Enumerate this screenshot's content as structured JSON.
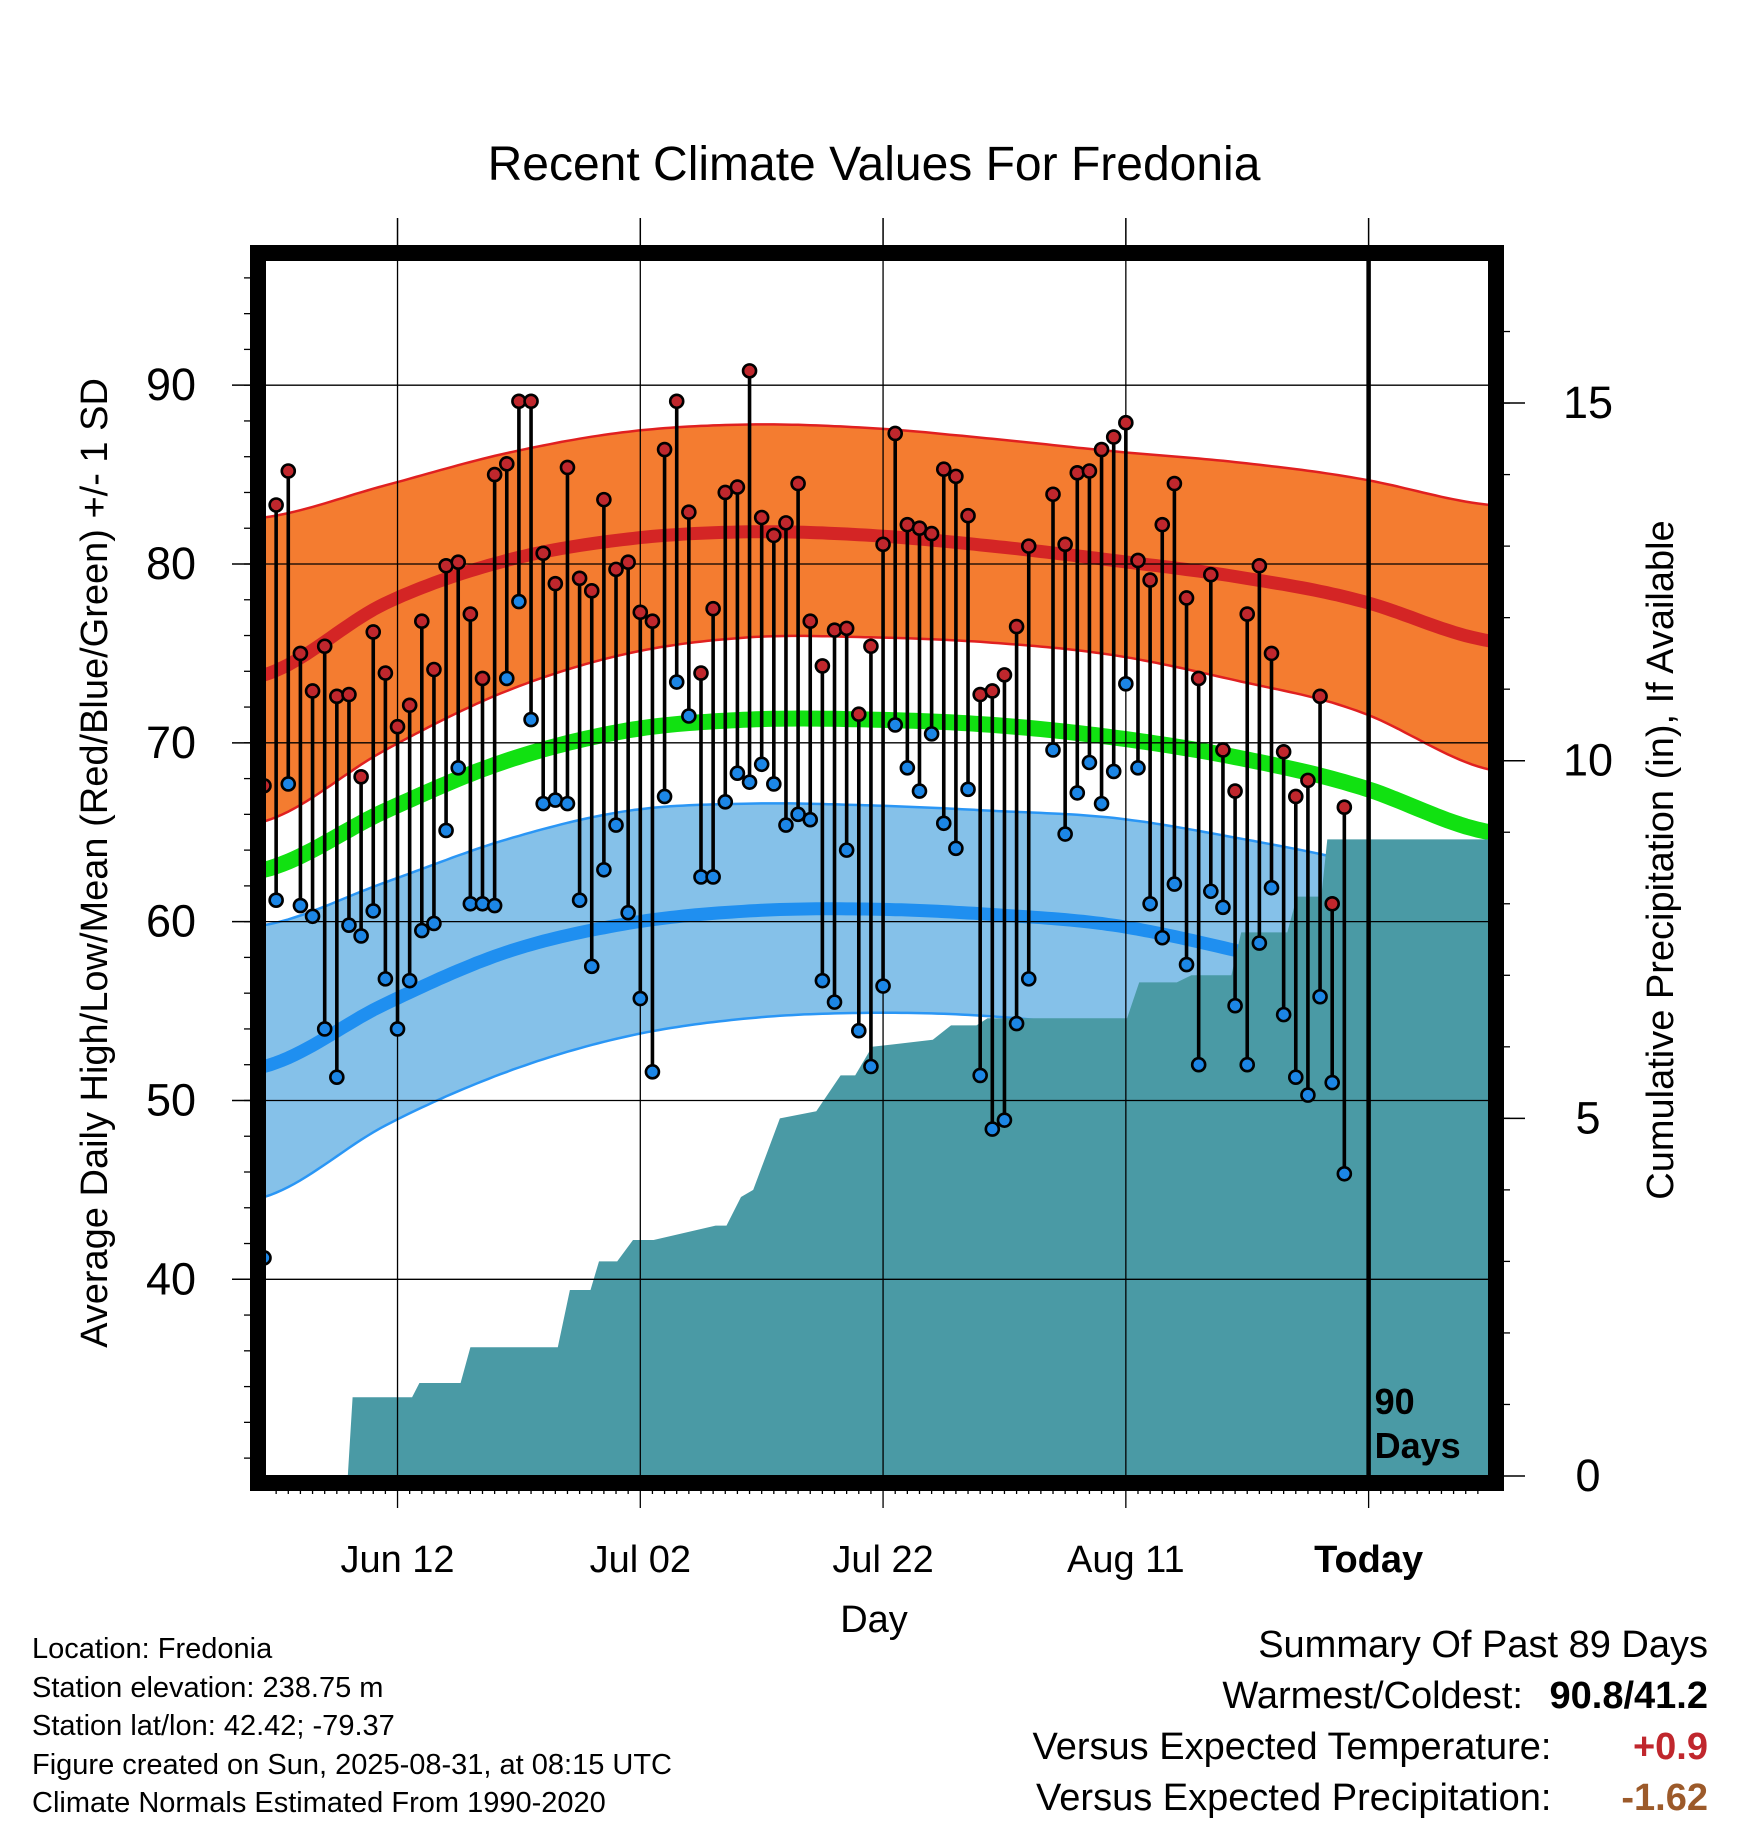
{
  "chart_data": {
    "type": "line",
    "title": "Recent Climate Values For Fredonia",
    "xlabel": "Day",
    "ylabel": "Average Daily High/Low/Mean (Red/Blue/Green) +/- 1 SD",
    "y2label": "Cumulative Precipitation (in), If Available",
    "x_ticks": [
      "Jun 12",
      "Jul 02",
      "Jul 22",
      "Aug 11",
      "Today"
    ],
    "x_tick_days": [
      11,
      31,
      51,
      71,
      91
    ],
    "xlim": [
      0,
      101
    ],
    "ylim": [
      29,
      97
    ],
    "y_ticks": [
      40,
      50,
      60,
      70,
      80,
      90
    ],
    "y2lim": [
      0,
      17
    ],
    "y2_ticks": [
      0,
      5,
      10,
      15
    ],
    "grid": true,
    "today_marker": "90\nDays",
    "normals": {
      "days": [
        0,
        10,
        20,
        30,
        40,
        50,
        60,
        70,
        80,
        90,
        101
      ],
      "high_mean": [
        73.8,
        77.8,
        80.2,
        81.4,
        81.8,
        81.6,
        81.0,
        80.2,
        79.3,
        78.0,
        75.7
      ],
      "high_plus_sd": [
        82.6,
        84.4,
        86.2,
        87.4,
        87.8,
        87.6,
        87.0,
        86.3,
        85.7,
        84.8,
        83.3
      ],
      "high_minus_sd": [
        65.6,
        69.6,
        72.9,
        75.0,
        75.9,
        75.9,
        75.6,
        74.9,
        73.5,
        71.8,
        68.5
      ],
      "mean": [
        62.9,
        66.2,
        69.0,
        70.7,
        71.3,
        71.3,
        71.0,
        70.3,
        69.2,
        67.6,
        65.0
      ],
      "low_mean": [
        51.9,
        55.4,
        58.3,
        59.9,
        60.6,
        60.7,
        60.4,
        59.8,
        58.4,
        56.7,
        54.1
      ],
      "low_plus_sd": [
        59.8,
        62.2,
        64.6,
        66.2,
        66.6,
        66.5,
        66.2,
        65.8,
        64.7,
        63.3,
        61.2
      ],
      "low_minus_sd": [
        44.6,
        48.6,
        51.6,
        53.6,
        54.6,
        54.9,
        54.7,
        53.9,
        52.1,
        50.1,
        47.2
      ]
    },
    "observed": {
      "high": [
        67.6,
        83.3,
        85.2,
        75.0,
        72.9,
        75.4,
        72.6,
        72.7,
        68.1,
        76.2,
        73.9,
        70.9,
        72.1,
        76.8,
        74.1,
        79.9,
        80.1,
        77.2,
        73.6,
        85.0,
        85.6,
        89.1,
        89.1,
        80.6,
        78.9,
        85.4,
        79.2,
        78.5,
        83.6,
        79.7,
        80.1,
        77.3,
        76.8,
        86.4,
        89.1,
        82.9,
        73.9,
        77.5,
        84.0,
        84.3,
        90.8,
        82.6,
        81.6,
        82.3,
        84.5,
        76.8,
        74.3,
        76.3,
        76.4,
        71.6,
        75.4,
        81.1,
        87.3,
        82.2,
        82.0,
        81.7,
        85.3,
        84.9,
        82.7,
        72.7,
        72.9,
        73.8,
        76.5,
        81.0,
        null,
        83.9,
        81.1,
        85.1,
        85.2,
        86.4,
        87.1,
        87.9,
        80.2,
        79.1,
        82.2,
        84.5,
        78.1,
        73.6,
        79.4,
        69.6,
        67.3,
        77.2,
        79.9,
        75.0,
        69.5,
        67.0,
        67.9,
        72.6,
        61.0,
        66.4
      ],
      "low": [
        41.2,
        61.2,
        67.7,
        60.9,
        60.3,
        54.0,
        51.3,
        59.8,
        59.2,
        60.6,
        56.8,
        54.0,
        56.7,
        59.5,
        59.9,
        65.1,
        68.6,
        61.0,
        61.0,
        60.9,
        73.6,
        77.9,
        71.3,
        66.6,
        66.8,
        66.6,
        61.2,
        57.5,
        62.9,
        65.4,
        60.5,
        55.7,
        51.6,
        67.0,
        73.4,
        71.5,
        62.5,
        62.5,
        66.7,
        68.3,
        67.8,
        68.8,
        67.7,
        65.4,
        66.0,
        65.7,
        56.7,
        55.5,
        64.0,
        53.9,
        51.9,
        56.4,
        71.0,
        68.6,
        67.3,
        70.5,
        65.5,
        64.1,
        67.4,
        51.4,
        48.4,
        48.9,
        54.3,
        56.8,
        null,
        69.6,
        64.9,
        67.2,
        68.9,
        66.6,
        68.4,
        73.3,
        68.6,
        61.0,
        59.1,
        62.1,
        57.6,
        52.0,
        61.7,
        60.8,
        55.3,
        52.0,
        58.8,
        61.9,
        54.8,
        51.3,
        50.3,
        55.8,
        51.0,
        45.9
      ]
    },
    "precip_cumulative": {
      "days": [
        0,
        6.9,
        7.3,
        12.2,
        12.8,
        16.2,
        17.0,
        24.2,
        25.2,
        26.9,
        27.6,
        29.1,
        30.4,
        32.1,
        37.2,
        38.1,
        39.3,
        40.3,
        42.5,
        45.5,
        47.5,
        48.7,
        50.1,
        55.1,
        56.6,
        58.7,
        59.6,
        71.1,
        72.1,
        75.2,
        76.4,
        79.7,
        80.5,
        84.3,
        85.1,
        86.2,
        87.1,
        87.6,
        101
      ],
      "values": [
        0,
        0,
        1.1,
        1.1,
        1.3,
        1.3,
        1.8,
        1.8,
        2.6,
        2.6,
        3.0,
        3.0,
        3.3,
        3.3,
        3.5,
        3.5,
        3.9,
        4.0,
        5.0,
        5.1,
        5.6,
        5.6,
        6.0,
        6.1,
        6.3,
        6.3,
        6.4,
        6.4,
        6.9,
        6.9,
        7.0,
        7.0,
        7.6,
        7.6,
        8.1,
        8.1,
        8.1,
        8.9,
        8.9
      ]
    },
    "colors": {
      "high_band": "#f47c30",
      "high_line": "#d42525",
      "mean_line": "#11e111",
      "low_band": "#85c1e9",
      "low_line": "#1f8ff0",
      "high_marker": "#c0272d",
      "low_marker": "#1c86e6",
      "precip_fill": "#4a9aa5",
      "band_edge_high": "#e02020",
      "band_edge_low": "#2a96f5"
    }
  },
  "footer": {
    "location": "Location: Fredonia",
    "elevation": "Station elevation: 238.75 m",
    "latlon": "Station lat/lon: 42.42; -79.37",
    "created": "Figure created on Sun, 2025-08-31, at 08:15 UTC",
    "normals": "Climate Normals Estimated From 1990-2020"
  },
  "summary": {
    "heading": "Summary Of Past 89 Days",
    "warmest_label": "Warmest/Coldest:",
    "warmest_value": "90.8",
    "coldest_value": "41.2",
    "temp_label": "Versus Expected Temperature:",
    "temp_value": "+0.9",
    "temp_color": "#c0272d",
    "precip_label": "Versus Expected Precipitation:",
    "precip_value": "-1.62",
    "precip_color": "#9c5a2a"
  }
}
